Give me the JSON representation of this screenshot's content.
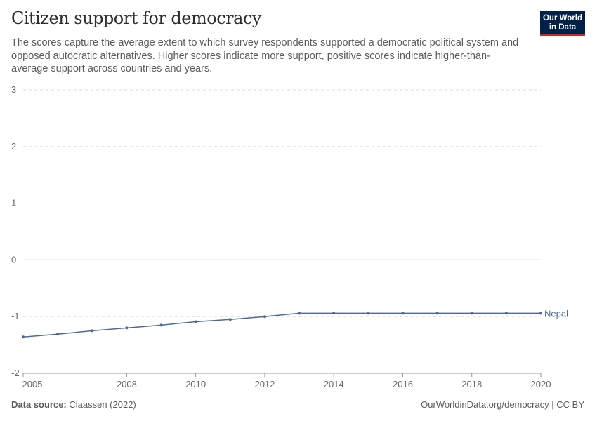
{
  "header": {
    "title": "Citizen support for democracy",
    "subtitle": "The scores capture the average extent to which survey respondents supported a democratic political system and opposed autocratic alternatives. Higher scores indicate more support, positive scores indicate higher-than-average support across countries and years.",
    "logo_line1": "Our World",
    "logo_line2": "in Data"
  },
  "footer": {
    "source_label": "Data source:",
    "source": "Claassen (2022)",
    "link": "OurWorldinData.org/democracy | CC BY"
  },
  "chart_data": {
    "type": "line",
    "title": "Citizen support for democracy",
    "xlim": [
      2005,
      2020
    ],
    "ylim": [
      -2,
      3
    ],
    "x_ticks": [
      "2005",
      "2008",
      "2010",
      "2012",
      "2014",
      "2016",
      "2018",
      "2020"
    ],
    "y_ticks": [
      "-2",
      "-1",
      "0",
      "1",
      "2",
      "3"
    ],
    "grid": "horizontal dashed",
    "series": [
      {
        "name": "Nepal",
        "color": "#4c6a9c",
        "x": [
          2005,
          2006,
          2007,
          2008,
          2009,
          2010,
          2011,
          2012,
          2013,
          2014,
          2015,
          2016,
          2017,
          2018,
          2019,
          2020
        ],
        "values": [
          -1.36,
          -1.31,
          -1.25,
          -1.2,
          -1.15,
          -1.09,
          -1.05,
          -1.0,
          -0.94,
          -0.94,
          -0.94,
          -0.94,
          -0.94,
          -0.94,
          -0.94,
          -0.94
        ]
      }
    ]
  }
}
